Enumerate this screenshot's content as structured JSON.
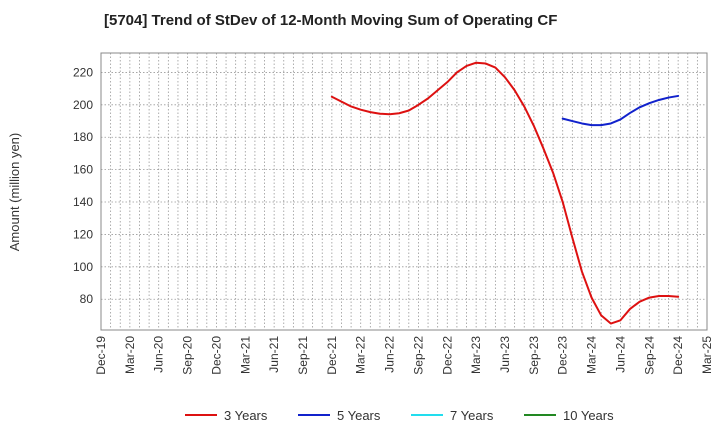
{
  "chart_data": {
    "type": "line",
    "title": "[5704]  Trend of StDev of 12-Month Moving Sum of Operating CF",
    "xlabel": "",
    "ylabel": "Amount (million yen)",
    "ylim": [
      61,
      232
    ],
    "yticks": [
      80,
      100,
      120,
      140,
      160,
      180,
      200,
      220
    ],
    "grid": true,
    "legend_position": "bottom",
    "x_tick_labels": [
      "Dec-19",
      "Mar-20",
      "Jun-20",
      "Sep-20",
      "Dec-20",
      "Mar-21",
      "Jun-21",
      "Sep-21",
      "Dec-21",
      "Mar-22",
      "Jun-22",
      "Sep-22",
      "Dec-22",
      "Mar-23",
      "Jun-23",
      "Sep-23",
      "Dec-23",
      "Mar-24",
      "Jun-24",
      "Sep-24",
      "Dec-24",
      "Mar-25"
    ],
    "series": [
      {
        "name": "3 Years",
        "color": "#dd1111",
        "points": [
          [
            "Dec-21",
            205
          ],
          [
            "Jan-22",
            202
          ],
          [
            "Feb-22",
            199
          ],
          [
            "Mar-22",
            197
          ],
          [
            "Apr-22",
            195.5
          ],
          [
            "May-22",
            194.5
          ],
          [
            "Jun-22",
            194.2
          ],
          [
            "Jul-22",
            194.8
          ],
          [
            "Aug-22",
            196.5
          ],
          [
            "Sep-22",
            200
          ],
          [
            "Oct-22",
            204
          ],
          [
            "Nov-22",
            209
          ],
          [
            "Dec-22",
            214
          ],
          [
            "Jan-23",
            220
          ],
          [
            "Feb-23",
            224
          ],
          [
            "Mar-23",
            226
          ],
          [
            "Apr-23",
            225.5
          ],
          [
            "May-23",
            223
          ],
          [
            "Jun-23",
            217
          ],
          [
            "Jul-23",
            209
          ],
          [
            "Aug-23",
            199
          ],
          [
            "Sep-23",
            187
          ],
          [
            "Oct-23",
            173
          ],
          [
            "Nov-23",
            158
          ],
          [
            "Dec-23",
            140
          ],
          [
            "Jan-24",
            118
          ],
          [
            "Feb-24",
            97
          ],
          [
            "Mar-24",
            81
          ],
          [
            "Apr-24",
            70
          ],
          [
            "May-24",
            65
          ],
          [
            "Jun-24",
            67
          ],
          [
            "Jul-24",
            74
          ],
          [
            "Aug-24",
            78.5
          ],
          [
            "Sep-24",
            81
          ],
          [
            "Oct-24",
            82
          ],
          [
            "Nov-24",
            82
          ],
          [
            "Dec-24",
            81.5
          ]
        ]
      },
      {
        "name": "5 Years",
        "color": "#1122cc",
        "points": [
          [
            "Dec-23",
            191.5
          ],
          [
            "Jan-24",
            190
          ],
          [
            "Feb-24",
            188.5
          ],
          [
            "Mar-24",
            187.5
          ],
          [
            "Apr-24",
            187.5
          ],
          [
            "May-24",
            188.5
          ],
          [
            "Jun-24",
            191
          ],
          [
            "Jul-24",
            195
          ],
          [
            "Aug-24",
            198.5
          ],
          [
            "Sep-24",
            201
          ],
          [
            "Oct-24",
            203
          ],
          [
            "Nov-24",
            204.5
          ],
          [
            "Dec-24",
            205.5
          ]
        ]
      },
      {
        "name": "7 Years",
        "color": "#22ddee",
        "points": []
      },
      {
        "name": "10 Years",
        "color": "#228822",
        "points": []
      }
    ]
  }
}
